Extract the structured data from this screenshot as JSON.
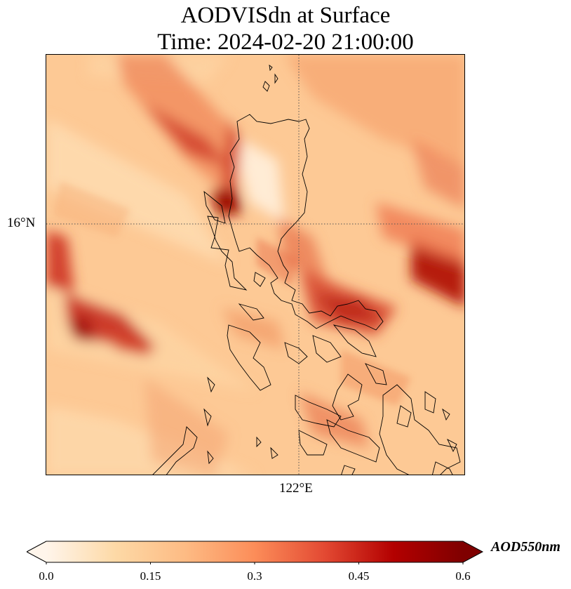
{
  "title": {
    "line1": "AODVISdn at Surface",
    "line2": "Time: 2024-02-20 21:00:00"
  },
  "axes": {
    "lat_label": "16°N",
    "lon_label": "122°E"
  },
  "colorbar": {
    "units": "AOD550nm",
    "ticks": [
      "0.0",
      "0.15",
      "0.3",
      "0.45",
      "0.6"
    ],
    "min": 0.0,
    "max": 0.6,
    "extend": "both",
    "colors": [
      "#fff5eb",
      "#fdd9a6",
      "#fdbb84",
      "#fc8d59",
      "#e34a33",
      "#b30000",
      "#7f0000"
    ]
  },
  "map": {
    "colormap": "OrRd",
    "background_level": 0.23
  }
}
